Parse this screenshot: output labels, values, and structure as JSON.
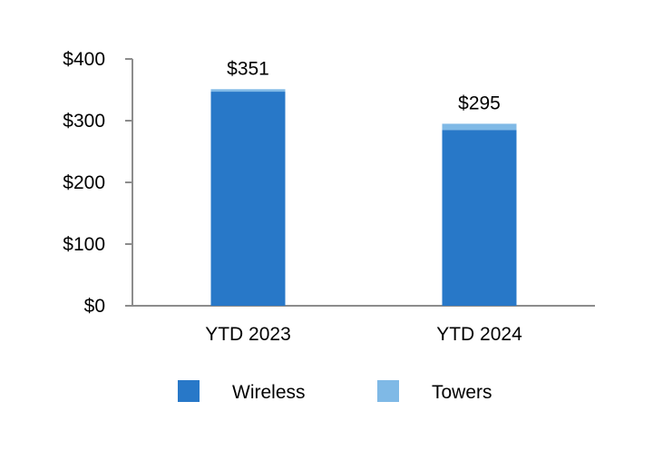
{
  "chart_data": {
    "type": "bar",
    "stacked": true,
    "categories": [
      "YTD 2023",
      "YTD 2024"
    ],
    "series": [
      {
        "name": "Wireless",
        "values": [
          347,
          285
        ],
        "color": "#2878c8"
      },
      {
        "name": "Towers",
        "values": [
          4,
          10
        ],
        "color": "#7fb9e6"
      }
    ],
    "totals": [
      351,
      295
    ],
    "total_labels": [
      "$351",
      "$295"
    ],
    "ylim": [
      0,
      400
    ],
    "yticks": [
      0,
      100,
      200,
      300,
      400
    ],
    "ytick_labels": [
      "$0",
      "$100",
      "$200",
      "$300",
      "$400"
    ],
    "grid": false,
    "legend_position": "bottom"
  }
}
